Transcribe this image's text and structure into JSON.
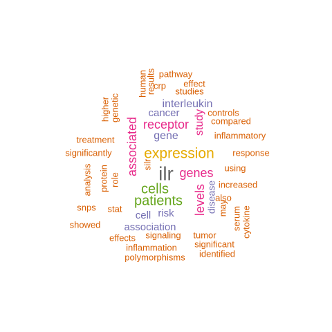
{
  "colors": {
    "orange": "#D95F02",
    "purple": "#7570B3",
    "magenta": "#E7298A",
    "green": "#66A61E",
    "gold": "#E6AB02",
    "gray": "#666666"
  },
  "words": [
    {
      "text": "ilr",
      "color": "gray"
    },
    {
      "text": "expression",
      "color": "gold"
    },
    {
      "text": "patients",
      "color": "green"
    },
    {
      "text": "cells",
      "color": "green"
    },
    {
      "text": "associated",
      "color": "magenta"
    },
    {
      "text": "receptor",
      "color": "magenta"
    },
    {
      "text": "genes",
      "color": "magenta"
    },
    {
      "text": "levels",
      "color": "magenta"
    },
    {
      "text": "study",
      "color": "magenta"
    },
    {
      "text": "interleukin",
      "color": "purple"
    },
    {
      "text": "cancer",
      "color": "purple"
    },
    {
      "text": "gene",
      "color": "purple"
    },
    {
      "text": "disease",
      "color": "purple"
    },
    {
      "text": "association",
      "color": "purple"
    },
    {
      "text": "cell",
      "color": "purple"
    },
    {
      "text": "risk",
      "color": "purple"
    },
    {
      "text": "pathway",
      "color": "orange"
    },
    {
      "text": "effect",
      "color": "orange"
    },
    {
      "text": "studies",
      "color": "orange"
    },
    {
      "text": "human",
      "color": "orange"
    },
    {
      "text": "results",
      "color": "orange"
    },
    {
      "text": "crp",
      "color": "orange"
    },
    {
      "text": "higher",
      "color": "orange"
    },
    {
      "text": "genetic",
      "color": "orange"
    },
    {
      "text": "controls",
      "color": "orange"
    },
    {
      "text": "compared",
      "color": "orange"
    },
    {
      "text": "treatment",
      "color": "orange"
    },
    {
      "text": "inflammatory",
      "color": "orange"
    },
    {
      "text": "significantly",
      "color": "orange"
    },
    {
      "text": "response",
      "color": "orange"
    },
    {
      "text": "silr",
      "color": "orange"
    },
    {
      "text": "using",
      "color": "orange"
    },
    {
      "text": "analysis",
      "color": "orange"
    },
    {
      "text": "protein",
      "color": "orange"
    },
    {
      "text": "role",
      "color": "orange"
    },
    {
      "text": "increased",
      "color": "orange"
    },
    {
      "text": "also",
      "color": "orange"
    },
    {
      "text": "snps",
      "color": "orange"
    },
    {
      "text": "stat",
      "color": "orange"
    },
    {
      "text": "may",
      "color": "orange"
    },
    {
      "text": "serum",
      "color": "orange"
    },
    {
      "text": "cytokine",
      "color": "orange"
    },
    {
      "text": "showed",
      "color": "orange"
    },
    {
      "text": "signaling",
      "color": "orange"
    },
    {
      "text": "tumor",
      "color": "orange"
    },
    {
      "text": "effects",
      "color": "orange"
    },
    {
      "text": "significant",
      "color": "orange"
    },
    {
      "text": "inflammation",
      "color": "orange"
    },
    {
      "text": "polymorphisms",
      "color": "orange"
    },
    {
      "text": "identified",
      "color": "orange"
    }
  ]
}
